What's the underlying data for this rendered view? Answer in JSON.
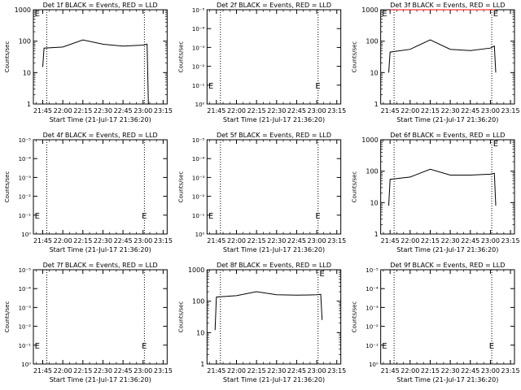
{
  "figure": {
    "xlabel": "Start Time (21-Jul-17 21:36:20)",
    "ylabel": "Counts/sec",
    "x_tick_labels": [
      "21:45",
      "22:00",
      "22:15",
      "22:30",
      "22:45",
      "23:00",
      "23:15"
    ],
    "log_tick_labels": [
      "1",
      "10",
      "100",
      "1000"
    ],
    "small_tick_labels": [
      "10⁰",
      "10⁻¹",
      "10⁻²",
      "10⁻³",
      "10⁻⁴",
      "10⁻⁵"
    ],
    "event_marker": "E"
  },
  "chart_data": [
    {
      "type": "line",
      "title": "Det 1f BLACK = Events, RED = LLD",
      "ylabel": "Counts/sec",
      "yscale": "log",
      "ylim": [
        1,
        1000
      ],
      "xlim": [
        "21:38",
        "23:18"
      ],
      "vlines": [
        "21:48",
        "23:01"
      ],
      "markers": [
        {
          "text": "E",
          "x": "21:39",
          "y": 1000
        }
      ],
      "series": [
        {
          "color": "#000000",
          "x": [
            "21:45",
            "21:46",
            "22:00",
            "22:15",
            "22:30",
            "22:45",
            "23:00",
            "23:03",
            "23:04"
          ],
          "y": [
            15,
            60,
            65,
            110,
            80,
            70,
            75,
            80,
            1
          ]
        }
      ]
    },
    {
      "type": "line",
      "title": "Det 2f BLACK = Events, RED = LLD",
      "ylabel": "Counts/sec",
      "yscale": "small",
      "xlim": [
        "21:38",
        "23:18"
      ],
      "vlines": [
        "21:48",
        "23:01"
      ],
      "markers": [
        {
          "text": "E",
          "x": "21:39",
          "y": 0.1
        },
        {
          "text": "E",
          "x": "22:59",
          "y": 0.1
        }
      ],
      "series": []
    },
    {
      "type": "line",
      "title": "Det 3f BLACK = Events, RED = LLD",
      "ylabel": "Counts/sec",
      "yscale": "log",
      "ylim": [
        1,
        1000
      ],
      "xlim": [
        "21:38",
        "23:18"
      ],
      "vlines": [
        "21:48",
        "23:01"
      ],
      "markers": [
        {
          "text": "E",
          "x": "21:39",
          "y": 1000
        },
        {
          "text": "E",
          "x": "23:02",
          "y": 1000
        }
      ],
      "series": [
        {
          "color": "#000000",
          "x": [
            "21:44",
            "21:45",
            "22:00",
            "22:15",
            "22:30",
            "22:45",
            "23:00",
            "23:03",
            "23:04"
          ],
          "y": [
            10,
            45,
            55,
            110,
            55,
            50,
            60,
            70,
            10
          ]
        },
        {
          "color": "#ff0000",
          "x": [
            "21:45",
            "23:03"
          ],
          "y": [
            1000,
            1000
          ]
        }
      ]
    },
    {
      "type": "line",
      "title": "Det 4f BLACK = Events, RED = LLD",
      "ylabel": "Counts/sec",
      "yscale": "small",
      "xlim": [
        "21:38",
        "23:18"
      ],
      "vlines": [
        "21:48",
        "23:01"
      ],
      "markers": [
        {
          "text": "E",
          "x": "21:39",
          "y": 0.1
        },
        {
          "text": "E",
          "x": "22:59",
          "y": 0.1
        }
      ],
      "series": []
    },
    {
      "type": "line",
      "title": "Det 5f BLACK = Events, RED = LLD",
      "ylabel": "Counts/sec",
      "yscale": "small",
      "xlim": [
        "21:38",
        "23:18"
      ],
      "vlines": [
        "21:48",
        "23:01"
      ],
      "markers": [
        {
          "text": "E",
          "x": "21:39",
          "y": 0.1
        },
        {
          "text": "E",
          "x": "22:59",
          "y": 0.1
        }
      ],
      "series": []
    },
    {
      "type": "line",
      "title": "Det 6f BLACK = Events, RED = LLD",
      "ylabel": "Counts/sec",
      "yscale": "log",
      "ylim": [
        1,
        1000
      ],
      "xlim": [
        "21:38",
        "23:18"
      ],
      "vlines": [
        "21:48",
        "23:01"
      ],
      "markers": [
        {
          "text": "E",
          "x": "23:02",
          "y": 1000
        }
      ],
      "series": [
        {
          "color": "#000000",
          "x": [
            "21:44",
            "21:45",
            "22:00",
            "22:15",
            "22:30",
            "22:45",
            "23:00",
            "23:03",
            "23:04"
          ],
          "y": [
            8,
            55,
            65,
            115,
            75,
            75,
            80,
            85,
            8
          ]
        }
      ]
    },
    {
      "type": "line",
      "title": "Det 7f BLACK = Events, RED = LLD",
      "ylabel": "Counts/sec",
      "yscale": "small",
      "xlim": [
        "21:38",
        "23:18"
      ],
      "vlines": [
        "21:48",
        "23:01"
      ],
      "markers": [
        {
          "text": "E",
          "x": "21:39",
          "y": 0.1
        },
        {
          "text": "E",
          "x": "22:59",
          "y": 0.1
        }
      ],
      "series": []
    },
    {
      "type": "line",
      "title": "Det 8f BLACK = Events, RED = LLD",
      "ylabel": "Counts/sec",
      "yscale": "log",
      "ylim": [
        1,
        1000
      ],
      "xlim": [
        "21:38",
        "23:18"
      ],
      "vlines": [
        "21:48",
        "23:01"
      ],
      "markers": [
        {
          "text": "E",
          "x": "23:02",
          "y": 1000
        }
      ],
      "series": [
        {
          "color": "#000000",
          "x": [
            "21:44",
            "21:45",
            "22:00",
            "22:15",
            "22:30",
            "22:45",
            "23:00",
            "23:03",
            "23:04"
          ],
          "y": [
            12,
            135,
            150,
            200,
            160,
            155,
            160,
            165,
            25
          ]
        }
      ]
    },
    {
      "type": "line",
      "title": "Det 9f BLACK = Events, RED = LLD",
      "ylabel": "Counts/sec",
      "yscale": "small",
      "xlim": [
        "21:38",
        "23:18"
      ],
      "vlines": [
        "21:48",
        "23:01"
      ],
      "markers": [
        {
          "text": "E",
          "x": "21:39",
          "y": 0.1
        },
        {
          "text": "E",
          "x": "22:59",
          "y": 0.1
        }
      ],
      "series": []
    }
  ]
}
